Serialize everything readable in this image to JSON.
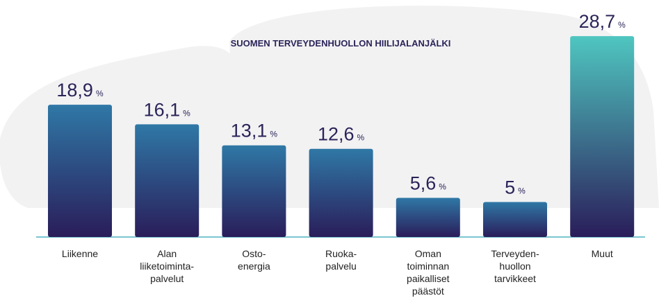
{
  "chart_data": {
    "type": "bar",
    "title": "SUOMEN TERVEYDENHUOLLON HIILIJALANJÄLKI",
    "categories": [
      [
        "Liikenne"
      ],
      [
        "Alan",
        "liiketoiminta-",
        "palvelut"
      ],
      [
        "Osto-",
        "energia"
      ],
      [
        "Ruoka-",
        "palvelu"
      ],
      [
        "Oman",
        "toiminnan",
        "paikalliset",
        "päästöt"
      ],
      [
        "Terveyden-",
        "huollon",
        "tarvikkeet"
      ],
      [
        "Muut"
      ]
    ],
    "values": [
      18.9,
      16.1,
      13.1,
      12.6,
      5.6,
      5,
      28.7
    ],
    "value_labels": [
      "18,9",
      "16,1",
      "13,1",
      "12,6",
      "5,6",
      "5",
      "28,7"
    ],
    "value_unit": "%",
    "colors": [
      "#2f78a6",
      "#2f78a6",
      "#2f78a6",
      "#2f78a6",
      "#2f78a6",
      "#2f78a6",
      "#4fc6c0"
    ],
    "gradient_end": "#2a1d5a",
    "ylim": [
      0,
      30
    ]
  }
}
